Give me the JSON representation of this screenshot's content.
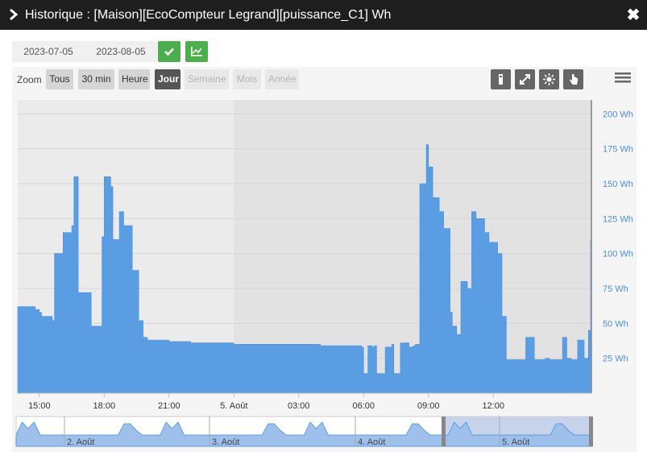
{
  "window": {
    "title": "Historique : [Maison][EcoCompteur Legrand][puissance_C1] Wh",
    "close_label": "✖"
  },
  "dates": {
    "start": "2023-07-05",
    "end": "2023-08-05"
  },
  "zoom": {
    "label": "Zoom",
    "buttons": [
      {
        "label": "Tous",
        "state": "normal"
      },
      {
        "label": "30 min",
        "state": "normal"
      },
      {
        "label": "Heure",
        "state": "normal"
      },
      {
        "label": "Jour",
        "state": "active"
      },
      {
        "label": "Semaine",
        "state": "disabled"
      },
      {
        "label": "Mois",
        "state": "disabled"
      },
      {
        "label": "Année",
        "state": "disabled"
      }
    ]
  },
  "toolbar_icons": [
    "marker-icon",
    "compare-icon",
    "sun-icon",
    "hand-pointer-icon"
  ],
  "colors": {
    "series": "#5b9de3",
    "accent_green": "#4cae4c",
    "titlebar": "#1e1e1e"
  },
  "chart_data": {
    "type": "area",
    "title": "",
    "xlabel": "",
    "ylabel": "",
    "x_ticks": [
      "15:00",
      "18:00",
      "21:00",
      "5. Août",
      "03:00",
      "06:00",
      "09:00",
      "12:00"
    ],
    "y_ticks": [
      "25 Wh",
      "50 Wh",
      "75 Wh",
      "100 Wh",
      "125 Wh",
      "150 Wh",
      "175 Wh",
      "200 Wh"
    ],
    "ylim": [
      0,
      210
    ],
    "y_unit": "Wh",
    "x_hours": [
      14.0,
      14.8,
      15.0,
      15.1,
      15.6,
      15.7,
      16.1,
      16.5,
      16.6,
      16.8,
      17.4,
      17.9,
      18.0,
      18.3,
      18.4,
      18.7,
      18.9,
      19.3,
      19.6,
      19.8,
      20.0,
      21.0,
      22.0,
      23.0,
      24.0,
      25.0,
      26.0,
      27.0,
      28.0,
      29.0,
      29.9,
      30.0,
      30.2,
      30.4,
      30.5,
      30.6,
      31.0,
      31.3,
      31.4,
      31.7,
      32.1,
      32.3,
      32.4,
      32.6,
      32.9,
      33.0,
      33.2,
      33.5,
      33.7,
      34.0,
      34.1,
      34.3,
      34.5,
      34.8,
      35.0,
      35.2,
      35.6,
      35.8,
      36.2,
      36.4,
      36.6,
      37.0,
      37.5,
      37.9,
      38.4,
      38.6,
      38.8,
      39.2,
      39.4,
      39.6,
      39.9,
      40.2,
      40.4,
      40.5
    ],
    "values": [
      62,
      60,
      58,
      55,
      52,
      100,
      115,
      120,
      155,
      72,
      48,
      112,
      155,
      148,
      110,
      130,
      120,
      88,
      52,
      40,
      38,
      37,
      36,
      36,
      35,
      35,
      35,
      35,
      34,
      34,
      33,
      14,
      34,
      33,
      34,
      14,
      33,
      35,
      14,
      36,
      33,
      34,
      35,
      150,
      178,
      162,
      140,
      130,
      118,
      58,
      48,
      42,
      80,
      75,
      130,
      125,
      115,
      108,
      100,
      55,
      24,
      24,
      40,
      24,
      25,
      24,
      24,
      40,
      25,
      24,
      38,
      25,
      45,
      110
    ],
    "navigator": {
      "labels": [
        "2. Août",
        "3. Août",
        "4. Août",
        "5. Août"
      ]
    }
  }
}
